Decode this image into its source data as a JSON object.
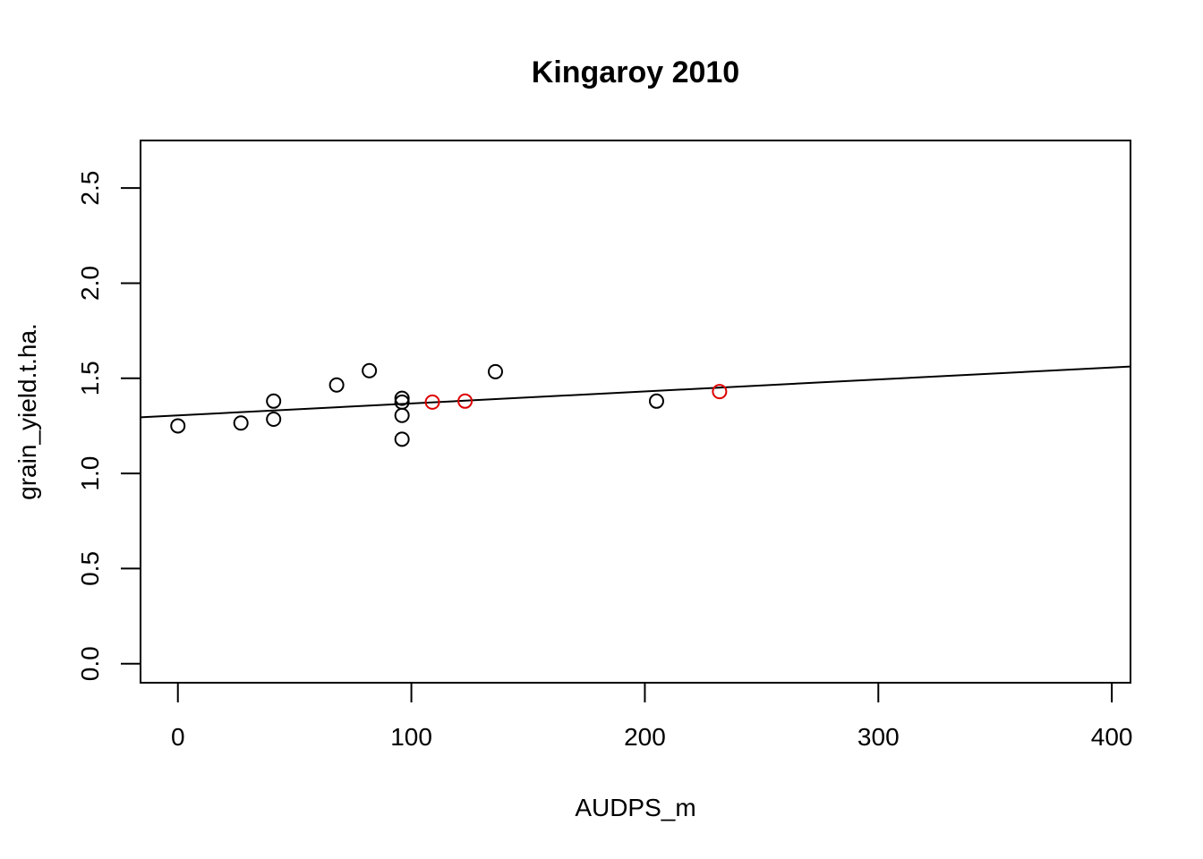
{
  "chart_data": {
    "type": "scatter",
    "title": "Kingaroy 2010",
    "xlabel": "AUDPS_m",
    "ylabel": "grain_yield.t.ha.",
    "xlim": [
      -16,
      408
    ],
    "ylim": [
      -0.1,
      2.75
    ],
    "x_ticks": [
      0,
      100,
      200,
      300,
      400
    ],
    "y_ticks": [
      0.0,
      0.5,
      1.0,
      1.5,
      2.0,
      2.5
    ],
    "x_tick_labels": [
      "0",
      "100",
      "200",
      "300",
      "400"
    ],
    "y_tick_labels": [
      "0.0",
      "0.5",
      "1.0",
      "1.5",
      "2.0",
      "2.5"
    ],
    "grid": false,
    "legend": "none",
    "series": [
      {
        "color": "#000000",
        "points": [
          {
            "x": 0,
            "y": 1.25
          },
          {
            "x": 27,
            "y": 1.265
          },
          {
            "x": 41,
            "y": 1.285
          },
          {
            "x": 41,
            "y": 1.38
          },
          {
            "x": 68,
            "y": 1.465
          },
          {
            "x": 82,
            "y": 1.54
          },
          {
            "x": 96,
            "y": 1.395
          },
          {
            "x": 96,
            "y": 1.375
          },
          {
            "x": 96,
            "y": 1.305
          },
          {
            "x": 96,
            "y": 1.18
          },
          {
            "x": 136,
            "y": 1.535
          },
          {
            "x": 205,
            "y": 1.38
          }
        ]
      },
      {
        "color": "#dd0000",
        "points": [
          {
            "x": 109,
            "y": 1.375
          },
          {
            "x": 123,
            "y": 1.38
          },
          {
            "x": 232,
            "y": 1.43
          }
        ]
      }
    ],
    "regression_line": {
      "intercept": 1.305,
      "slope": 0.00063,
      "color": "#000000"
    }
  }
}
